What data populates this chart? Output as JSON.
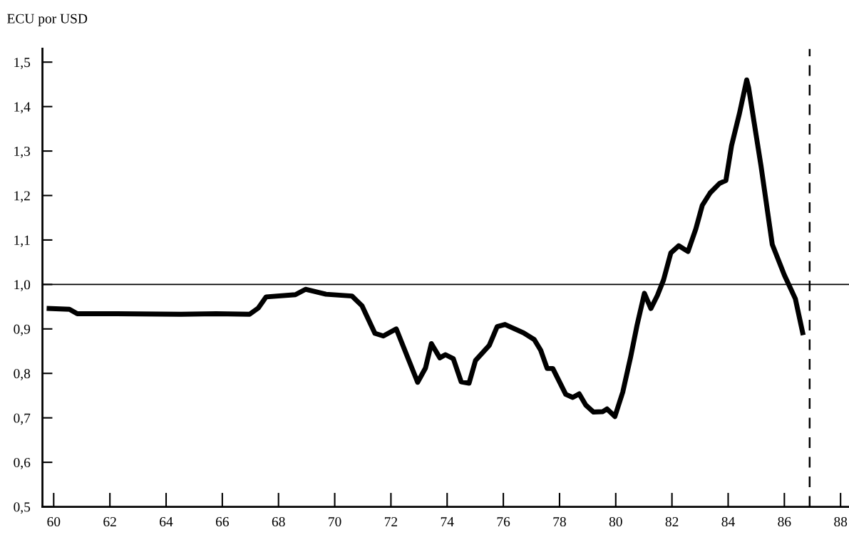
{
  "chart_data": {
    "type": "line",
    "ylabel": "ECU por USD",
    "x": [
      59.75,
      60.56,
      60.84,
      62.24,
      64.5,
      65.78,
      66.97,
      67.28,
      67.56,
      68.6,
      68.96,
      69.69,
      70.61,
      70.97,
      71.43,
      71.73,
      72.19,
      72.95,
      73.23,
      73.44,
      73.74,
      73.94,
      74.22,
      74.5,
      74.78,
      75.01,
      75.5,
      75.78,
      76.06,
      76.72,
      77.1,
      77.33,
      77.56,
      77.76,
      78.22,
      78.47,
      78.7,
      78.93,
      79.21,
      79.54,
      79.69,
      79.97,
      80.25,
      80.53,
      80.76,
      81.02,
      81.25,
      81.48,
      81.7,
      81.96,
      82.24,
      82.57,
      82.85,
      83.08,
      83.36,
      83.69,
      83.92,
      84.12,
      84.4,
      84.66,
      84.73,
      85.17,
      85.57,
      86.0,
      86.39,
      86.67
    ],
    "series": [
      {
        "color": "#000000",
        "values": [
          0.946,
          0.944,
          0.934,
          0.934,
          0.933,
          0.934,
          0.933,
          0.947,
          0.972,
          0.977,
          0.989,
          0.978,
          0.974,
          0.952,
          0.89,
          0.884,
          0.9,
          0.78,
          0.812,
          0.867,
          0.835,
          0.842,
          0.833,
          0.781,
          0.778,
          0.829,
          0.863,
          0.905,
          0.91,
          0.891,
          0.876,
          0.852,
          0.811,
          0.811,
          0.753,
          0.746,
          0.754,
          0.729,
          0.713,
          0.714,
          0.72,
          0.703,
          0.758,
          0.837,
          0.909,
          0.98,
          0.946,
          0.975,
          1.01,
          1.071,
          1.087,
          1.074,
          1.125,
          1.178,
          1.206,
          1.227,
          1.234,
          1.312,
          1.384,
          1.46,
          1.442,
          1.266,
          1.09,
          1.021,
          0.968,
          0.886
        ]
      }
    ],
    "xlim": [
      59.6,
      88.3
    ],
    "xticks": [
      60,
      62,
      64,
      66,
      68,
      70,
      72,
      74,
      76,
      78,
      80,
      82,
      84,
      86,
      88
    ],
    "ylim": [
      0.5,
      1.53
    ],
    "yticks": [
      {
        "value": 0.5,
        "label": "0,5"
      },
      {
        "value": 0.6,
        "label": "0,6"
      },
      {
        "value": 0.7,
        "label": "0,7"
      },
      {
        "value": 0.8,
        "label": "0,8"
      },
      {
        "value": 0.9,
        "label": "0,9"
      },
      {
        "value": 1.0,
        "label": "1,0"
      },
      {
        "value": 1.1,
        "label": "1,1"
      },
      {
        "value": 1.2,
        "label": "1,2"
      },
      {
        "value": 1.3,
        "label": "1,3"
      },
      {
        "value": 1.4,
        "label": "1,4"
      },
      {
        "value": 1.5,
        "label": "1,5"
      }
    ],
    "ref_lines": [
      {
        "axis": "y",
        "value": 1.0,
        "color": "#000000",
        "line_style": "solid"
      },
      {
        "axis": "x",
        "value": 86.9,
        "color": "#000000",
        "line_style": "dashed"
      }
    ],
    "grid": false,
    "legend": false,
    "marker": "none",
    "line_style": "solid"
  }
}
